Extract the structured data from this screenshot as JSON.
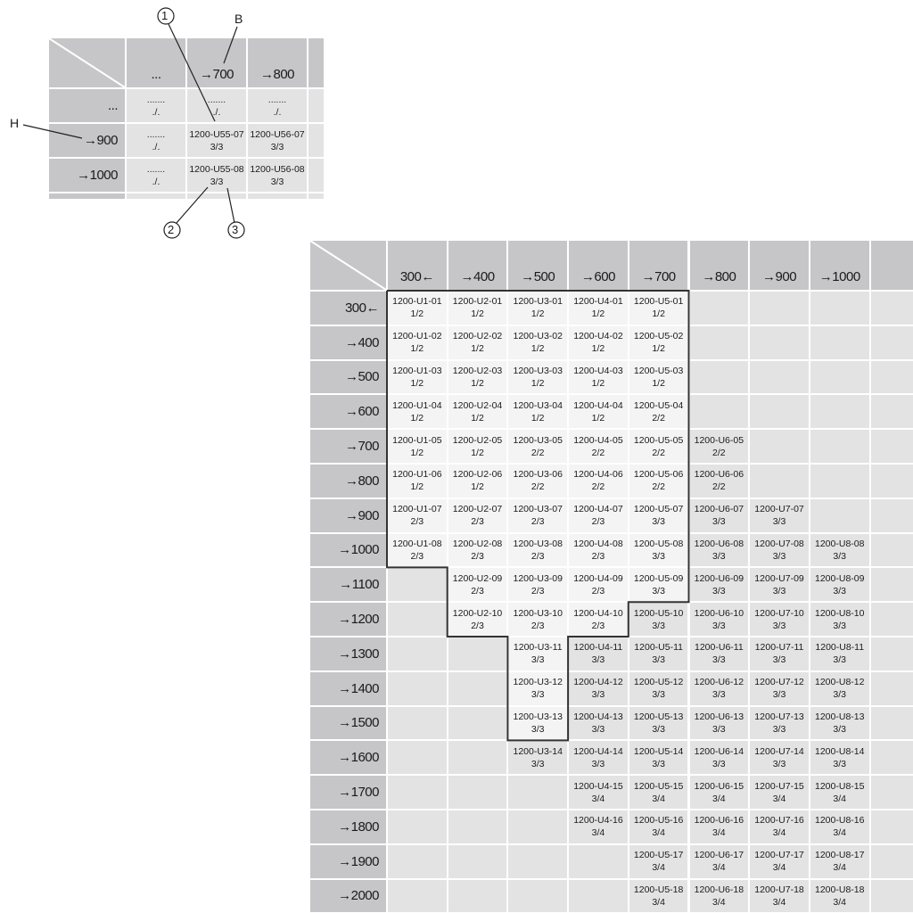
{
  "detail": {
    "columns": [
      "...",
      "→700",
      "→800"
    ],
    "rows": [
      "...",
      "→900",
      "→1000"
    ],
    "cells": [
      [
        {
          "code": ".......",
          "frac": "./."
        },
        {
          "code": ".......",
          "frac": "./."
        },
        {
          "code": ".......",
          "frac": "./."
        }
      ],
      [
        {
          "code": ".......",
          "frac": "./."
        },
        {
          "code": "1200-U55-07",
          "frac": "3/3"
        },
        {
          "code": "1200-U56-07",
          "frac": "3/3"
        }
      ],
      [
        {
          "code": ".......",
          "frac": "./."
        },
        {
          "code": "1200-U55-08",
          "frac": "3/3"
        },
        {
          "code": "1200-U56-08",
          "frac": "3/3"
        }
      ]
    ],
    "callouts": {
      "one": "1",
      "two": "2",
      "three": "3",
      "b": "B",
      "h": "H"
    }
  },
  "main": {
    "columns": [
      "300←",
      "→400",
      "→500",
      "→600",
      "→700",
      "→800",
      "→900",
      "→1000"
    ],
    "rows": [
      "300←",
      "→400",
      "→500",
      "→600",
      "→700",
      "→800",
      "→900",
      "→1000",
      "→1100",
      "→1200",
      "→1300",
      "→1400",
      "→1500",
      "→1600",
      "→1700",
      "→1800",
      "→1900",
      "→2000"
    ],
    "highlighted_rows_per_column": [
      8,
      10,
      13,
      10,
      9,
      0,
      0,
      0
    ],
    "cells": [
      [
        {
          "code": "1200-U1-01",
          "frac": "1/2"
        },
        {
          "code": "1200-U2-01",
          "frac": "1/2"
        },
        {
          "code": "1200-U3-01",
          "frac": "1/2"
        },
        {
          "code": "1200-U4-01",
          "frac": "1/2"
        },
        {
          "code": "1200-U5-01",
          "frac": "1/2"
        },
        null,
        null,
        null
      ],
      [
        {
          "code": "1200-U1-02",
          "frac": "1/2"
        },
        {
          "code": "1200-U2-02",
          "frac": "1/2"
        },
        {
          "code": "1200-U3-02",
          "frac": "1/2"
        },
        {
          "code": "1200-U4-02",
          "frac": "1/2"
        },
        {
          "code": "1200-U5-02",
          "frac": "1/2"
        },
        null,
        null,
        null
      ],
      [
        {
          "code": "1200-U1-03",
          "frac": "1/2"
        },
        {
          "code": "1200-U2-03",
          "frac": "1/2"
        },
        {
          "code": "1200-U3-03",
          "frac": "1/2"
        },
        {
          "code": "1200-U4-03",
          "frac": "1/2"
        },
        {
          "code": "1200-U5-03",
          "frac": "1/2"
        },
        null,
        null,
        null
      ],
      [
        {
          "code": "1200-U1-04",
          "frac": "1/2"
        },
        {
          "code": "1200-U2-04",
          "frac": "1/2"
        },
        {
          "code": "1200-U3-04",
          "frac": "1/2"
        },
        {
          "code": "1200-U4-04",
          "frac": "1/2"
        },
        {
          "code": "1200-U5-04",
          "frac": "2/2"
        },
        null,
        null,
        null
      ],
      [
        {
          "code": "1200-U1-05",
          "frac": "1/2"
        },
        {
          "code": "1200-U2-05",
          "frac": "1/2"
        },
        {
          "code": "1200-U3-05",
          "frac": "2/2"
        },
        {
          "code": "1200-U4-05",
          "frac": "2/2"
        },
        {
          "code": "1200-U5-05",
          "frac": "2/2"
        },
        {
          "code": "1200-U6-05",
          "frac": "2/2"
        },
        null,
        null
      ],
      [
        {
          "code": "1200-U1-06",
          "frac": "1/2"
        },
        {
          "code": "1200-U2-06",
          "frac": "1/2"
        },
        {
          "code": "1200-U3-06",
          "frac": "2/2"
        },
        {
          "code": "1200-U4-06",
          "frac": "2/2"
        },
        {
          "code": "1200-U5-06",
          "frac": "2/2"
        },
        {
          "code": "1200-U6-06",
          "frac": "2/2"
        },
        null,
        null
      ],
      [
        {
          "code": "1200-U1-07",
          "frac": "2/3"
        },
        {
          "code": "1200-U2-07",
          "frac": "2/3"
        },
        {
          "code": "1200-U3-07",
          "frac": "2/3"
        },
        {
          "code": "1200-U4-07",
          "frac": "2/3"
        },
        {
          "code": "1200-U5-07",
          "frac": "3/3"
        },
        {
          "code": "1200-U6-07",
          "frac": "3/3"
        },
        {
          "code": "1200-U7-07",
          "frac": "3/3"
        },
        null
      ],
      [
        {
          "code": "1200-U1-08",
          "frac": "2/3"
        },
        {
          "code": "1200-U2-08",
          "frac": "2/3"
        },
        {
          "code": "1200-U3-08",
          "frac": "2/3"
        },
        {
          "code": "1200-U4-08",
          "frac": "2/3"
        },
        {
          "code": "1200-U5-08",
          "frac": "3/3"
        },
        {
          "code": "1200-U6-08",
          "frac": "3/3"
        },
        {
          "code": "1200-U7-08",
          "frac": "3/3"
        },
        {
          "code": "1200-U8-08",
          "frac": "3/3"
        }
      ],
      [
        null,
        {
          "code": "1200-U2-09",
          "frac": "2/3"
        },
        {
          "code": "1200-U3-09",
          "frac": "2/3"
        },
        {
          "code": "1200-U4-09",
          "frac": "2/3"
        },
        {
          "code": "1200-U5-09",
          "frac": "3/3"
        },
        {
          "code": "1200-U6-09",
          "frac": "3/3"
        },
        {
          "code": "1200-U7-09",
          "frac": "3/3"
        },
        {
          "code": "1200-U8-09",
          "frac": "3/3"
        }
      ],
      [
        null,
        {
          "code": "1200-U2-10",
          "frac": "2/3"
        },
        {
          "code": "1200-U3-10",
          "frac": "2/3"
        },
        {
          "code": "1200-U4-10",
          "frac": "2/3"
        },
        {
          "code": "1200-U5-10",
          "frac": "3/3"
        },
        {
          "code": "1200-U6-10",
          "frac": "3/3"
        },
        {
          "code": "1200-U7-10",
          "frac": "3/3"
        },
        {
          "code": "1200-U8-10",
          "frac": "3/3"
        }
      ],
      [
        null,
        null,
        {
          "code": "1200-U3-11",
          "frac": "3/3"
        },
        {
          "code": "1200-U4-11",
          "frac": "3/3"
        },
        {
          "code": "1200-U5-11",
          "frac": "3/3"
        },
        {
          "code": "1200-U6-11",
          "frac": "3/3"
        },
        {
          "code": "1200-U7-11",
          "frac": "3/3"
        },
        {
          "code": "1200-U8-11",
          "frac": "3/3"
        }
      ],
      [
        null,
        null,
        {
          "code": "1200-U3-12",
          "frac": "3/3"
        },
        {
          "code": "1200-U4-12",
          "frac": "3/3"
        },
        {
          "code": "1200-U5-12",
          "frac": "3/3"
        },
        {
          "code": "1200-U6-12",
          "frac": "3/3"
        },
        {
          "code": "1200-U7-12",
          "frac": "3/3"
        },
        {
          "code": "1200-U8-12",
          "frac": "3/3"
        }
      ],
      [
        null,
        null,
        {
          "code": "1200-U3-13",
          "frac": "3/3"
        },
        {
          "code": "1200-U4-13",
          "frac": "3/3"
        },
        {
          "code": "1200-U5-13",
          "frac": "3/3"
        },
        {
          "code": "1200-U6-13",
          "frac": "3/3"
        },
        {
          "code": "1200-U7-13",
          "frac": "3/3"
        },
        {
          "code": "1200-U8-13",
          "frac": "3/3"
        }
      ],
      [
        null,
        null,
        {
          "code": "1200-U3-14",
          "frac": "3/3"
        },
        {
          "code": "1200-U4-14",
          "frac": "3/3"
        },
        {
          "code": "1200-U5-14",
          "frac": "3/3"
        },
        {
          "code": "1200-U6-14",
          "frac": "3/3"
        },
        {
          "code": "1200-U7-14",
          "frac": "3/3"
        },
        {
          "code": "1200-U8-14",
          "frac": "3/3"
        }
      ],
      [
        null,
        null,
        null,
        {
          "code": "1200-U4-15",
          "frac": "3/4"
        },
        {
          "code": "1200-U5-15",
          "frac": "3/4"
        },
        {
          "code": "1200-U6-15",
          "frac": "3/4"
        },
        {
          "code": "1200-U7-15",
          "frac": "3/4"
        },
        {
          "code": "1200-U8-15",
          "frac": "3/4"
        }
      ],
      [
        null,
        null,
        null,
        {
          "code": "1200-U4-16",
          "frac": "3/4"
        },
        {
          "code": "1200-U5-16",
          "frac": "3/4"
        },
        {
          "code": "1200-U6-16",
          "frac": "3/4"
        },
        {
          "code": "1200-U7-16",
          "frac": "3/4"
        },
        {
          "code": "1200-U8-16",
          "frac": "3/4"
        }
      ],
      [
        null,
        null,
        null,
        null,
        {
          "code": "1200-U5-17",
          "frac": "3/4"
        },
        {
          "code": "1200-U6-17",
          "frac": "3/4"
        },
        {
          "code": "1200-U7-17",
          "frac": "3/4"
        },
        {
          "code": "1200-U8-17",
          "frac": "3/4"
        }
      ],
      [
        null,
        null,
        null,
        null,
        {
          "code": "1200-U5-18",
          "frac": "3/4"
        },
        {
          "code": "1200-U6-18",
          "frac": "3/4"
        },
        {
          "code": "1200-U7-18",
          "frac": "3/4"
        },
        {
          "code": "1200-U8-18",
          "frac": "3/4"
        }
      ]
    ]
  }
}
